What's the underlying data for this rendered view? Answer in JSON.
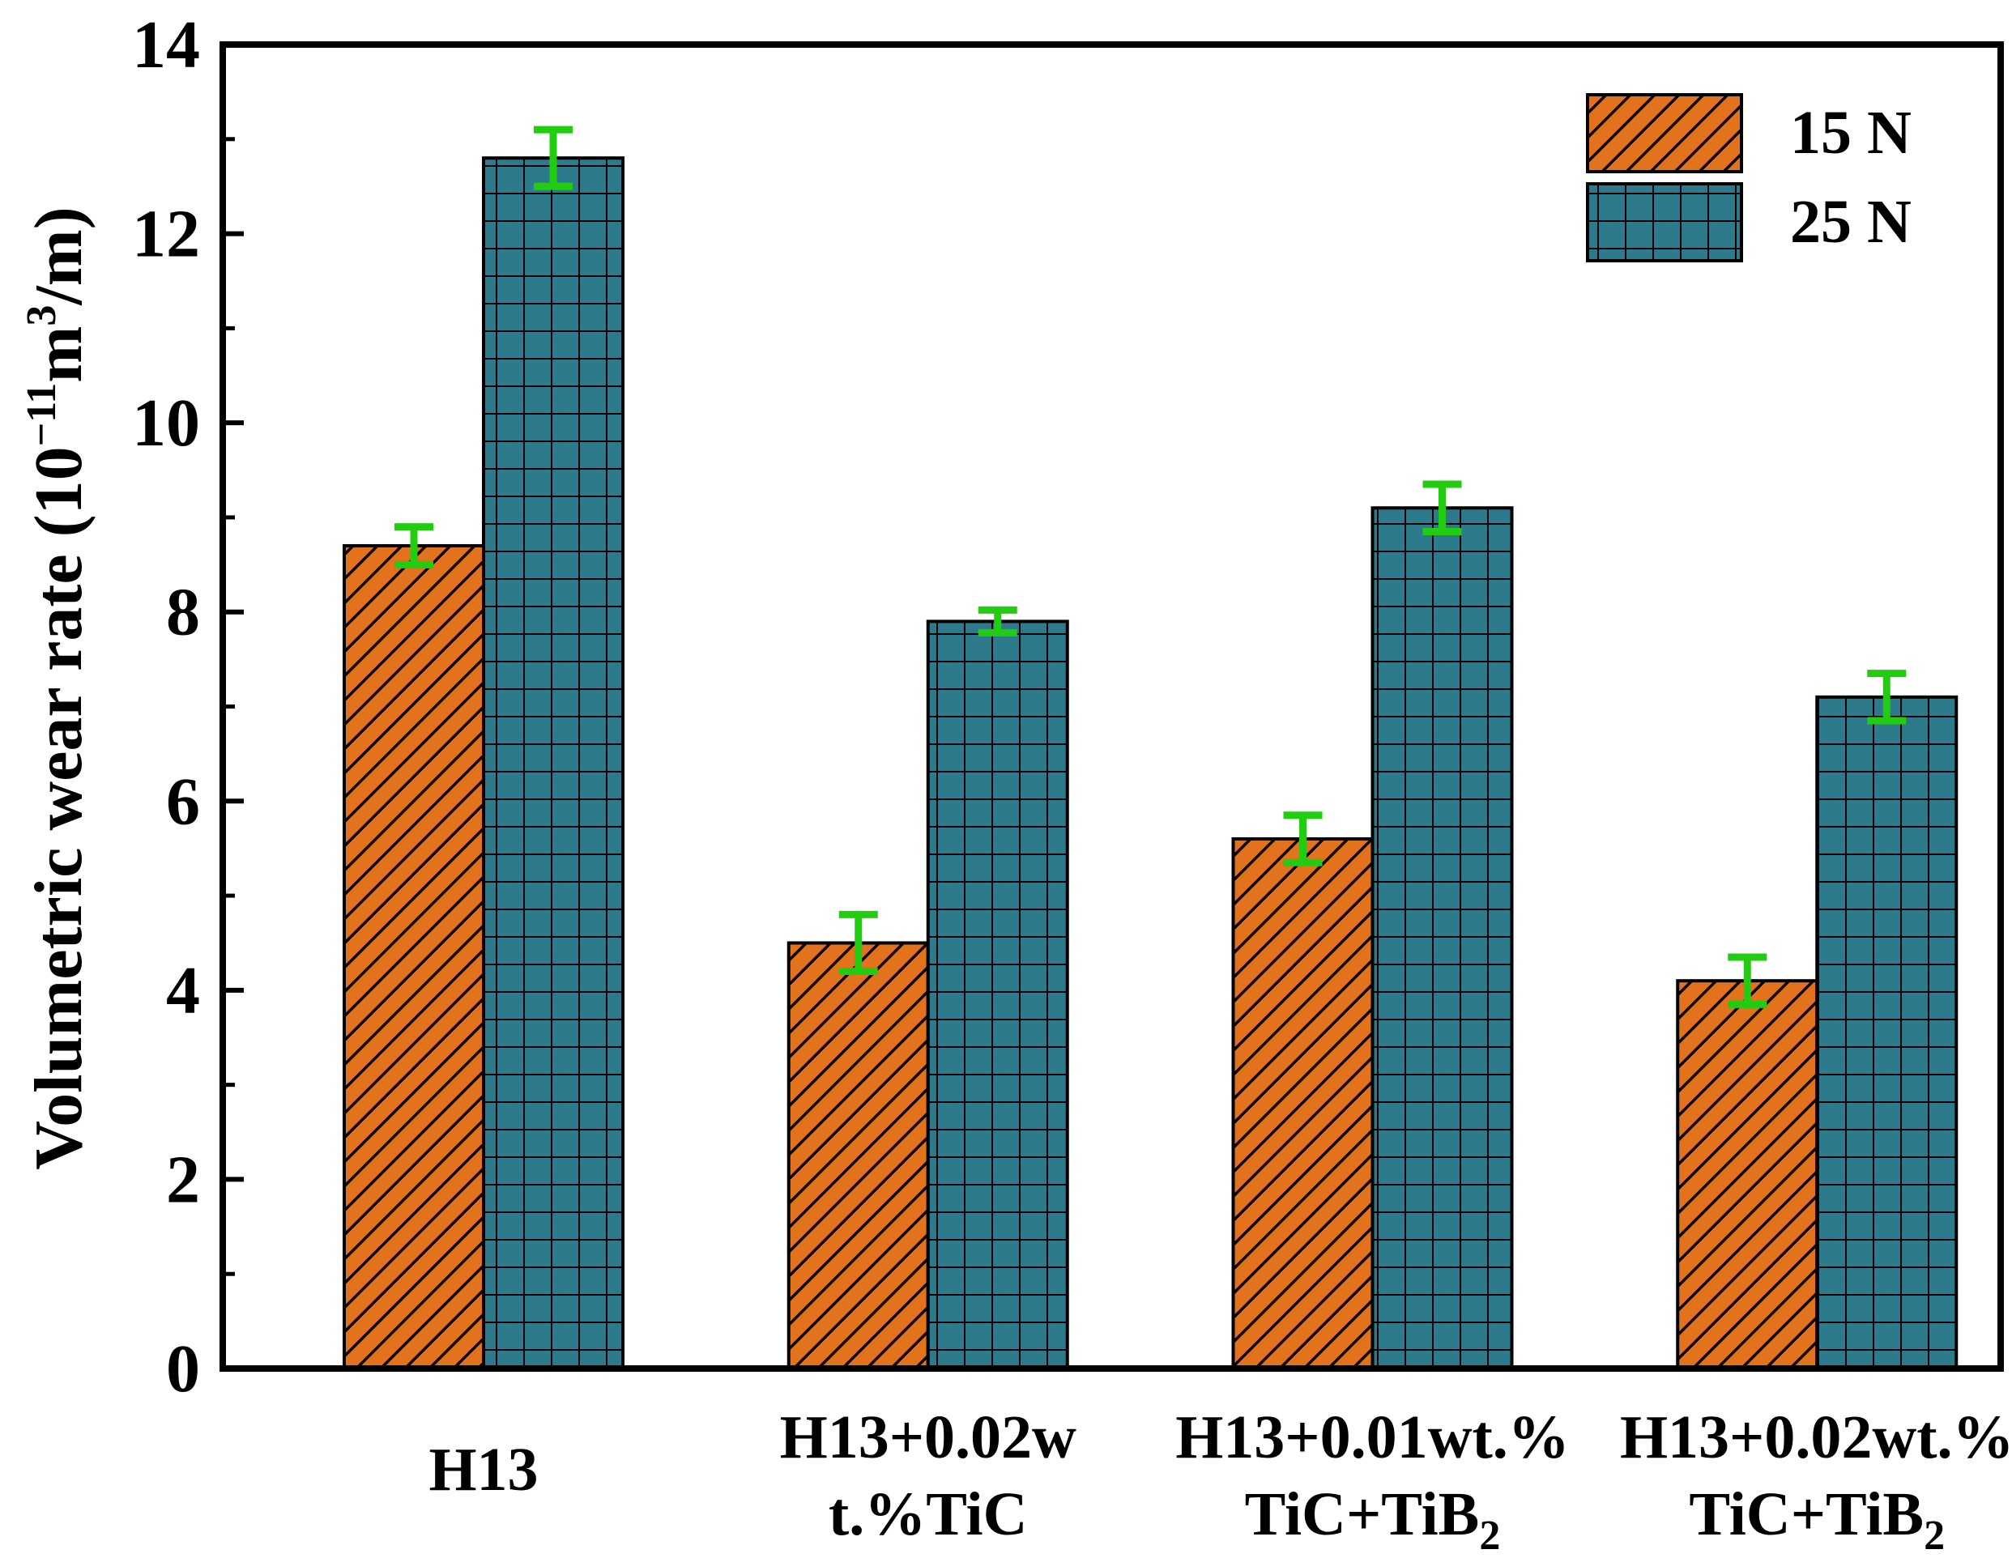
{
  "chart_data": {
    "type": "bar",
    "title": "",
    "xlabel": "",
    "ylabel": {
      "prefix": "Volumetric wear rate (10",
      "exp1": "−11",
      "mid": "m",
      "exp2": "3",
      "suffix": "/m)"
    },
    "ylim": [
      0,
      14
    ],
    "yticks": [
      "0",
      "2",
      "4",
      "6",
      "8",
      "10",
      "12",
      "14"
    ],
    "categories": [
      {
        "line1": "H13",
        "line2": "",
        "line2_sub": ""
      },
      {
        "line1": "H13+0.02w",
        "line2": "t.%TiC",
        "line2_sub": ""
      },
      {
        "line1": "H13+0.01wt.%",
        "line2": "TiC+TiB",
        "line2_sub": "2"
      },
      {
        "line1": "H13+0.02wt.%",
        "line2": "TiC+TiB",
        "line2_sub": "2"
      }
    ],
    "series": [
      {
        "name": "15 N",
        "pattern": "diagonal-hatch",
        "color": "#e2721c",
        "values": [
          8.7,
          4.5,
          5.6,
          4.1
        ],
        "errors": [
          0.2,
          0.3,
          0.25,
          0.25
        ]
      },
      {
        "name": "25 N",
        "pattern": "grid-hatch",
        "color": "#2d7a8c",
        "values": [
          12.8,
          7.9,
          9.1,
          7.1
        ],
        "errors": [
          0.3,
          0.12,
          0.25,
          0.25
        ]
      }
    ],
    "error_bar_color": "#22cc11",
    "legend_position": "top-right"
  }
}
